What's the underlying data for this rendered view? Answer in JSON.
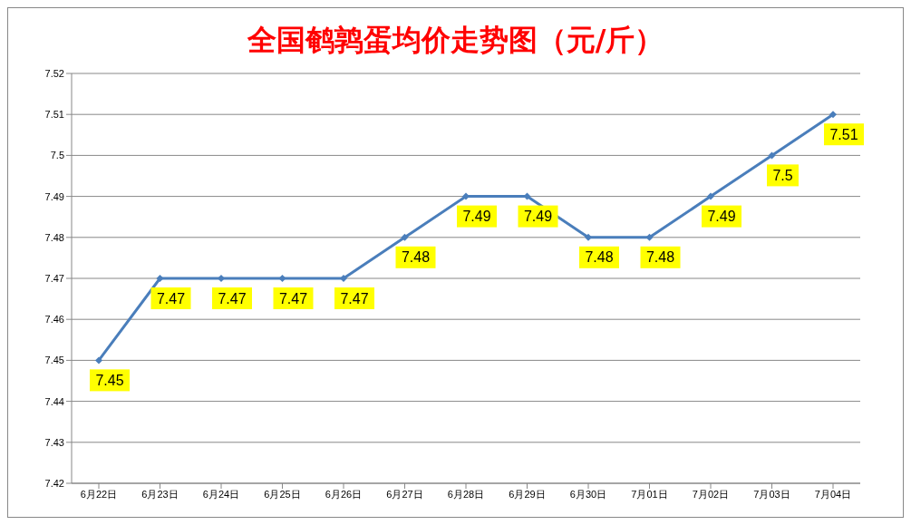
{
  "chart_data": {
    "type": "line",
    "title": "全国鹌鹑蛋均价走势图（元/斤）",
    "categories": [
      "6月22日",
      "6月23日",
      "6月24日",
      "6月25日",
      "6月26日",
      "6月27日",
      "6月28日",
      "6月29日",
      "6月30日",
      "7月01日",
      "7月02日",
      "7月03日",
      "7月04日"
    ],
    "series": [
      {
        "color": "#4a7ebb",
        "values": [
          7.45,
          7.47,
          7.47,
          7.47,
          7.47,
          7.48,
          7.49,
          7.49,
          7.48,
          7.48,
          7.49,
          7.5,
          7.51
        ]
      }
    ],
    "ylim": [
      7.42,
      7.52
    ],
    "yticks": [
      7.42,
      7.43,
      7.44,
      7.45,
      7.46,
      7.47,
      7.48,
      7.49,
      7.5,
      7.51,
      7.52
    ],
    "grid": "y",
    "legend": false,
    "marker": "diamond",
    "line_style": "solid",
    "data_labels": true
  }
}
